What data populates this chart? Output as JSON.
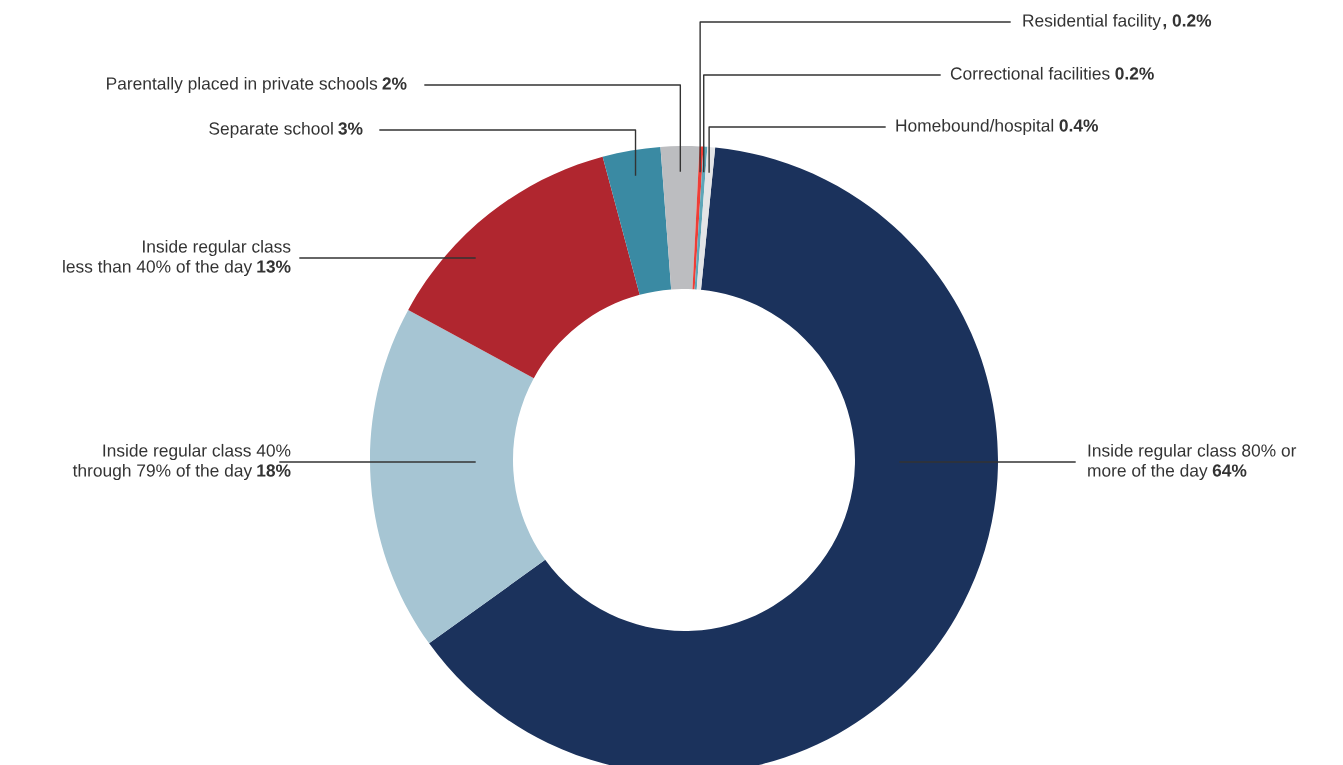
{
  "chart_data": {
    "type": "donut",
    "categories": [
      "Inside regular class 80% or\nmore of the day",
      "Inside regular class 40%\nthrough 79% of the day",
      "Inside regular class\nless than 40% of the day",
      "Separate school",
      "Parentally placed in private schools",
      "Residential facility",
      "Correctional facilities",
      "Homebound/hospital"
    ],
    "values": [
      64,
      18,
      13,
      3,
      2,
      0.2,
      0.2,
      0.4
    ],
    "value_labels": [
      "64%",
      "18%",
      "13%",
      "3%",
      "2%",
      ", 0.2%",
      "0.2%",
      "0.4%"
    ],
    "colors": [
      "#1b325c",
      "#a6c5d3",
      "#b0262f",
      "#3a8aa3",
      "#bcbdc0",
      "#ee3e37",
      "#5ea6b8",
      "#e3e4e6"
    ]
  }
}
